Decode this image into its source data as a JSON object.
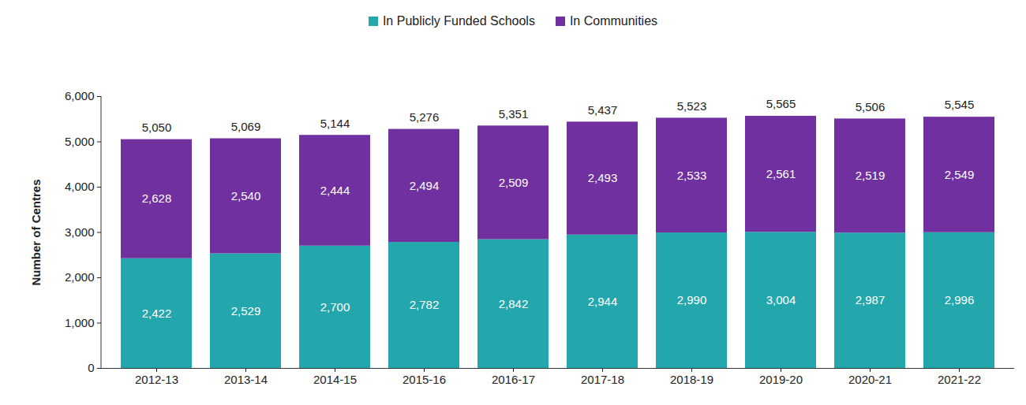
{
  "chart_data": {
    "type": "bar",
    "stacked": true,
    "data_labels": true,
    "legend": "top",
    "grid": false,
    "y_label": "Number of Centres",
    "categories": [
      "2012-13",
      "2013-14",
      "2014-15",
      "2015-16",
      "2016-17",
      "2017-18",
      "2018-19",
      "2019-20",
      "2020-21",
      "2021-22"
    ],
    "series": [
      {
        "name": "In Publicly Funded Schools",
        "color": "#23a7ad",
        "values": [
          2422,
          2529,
          2700,
          2782,
          2842,
          2944,
          2990,
          3004,
          2987,
          2996
        ],
        "value_labels": [
          "2,422",
          "2,529",
          "2,700",
          "2,782",
          "2,842",
          "2,944",
          "2,990",
          "3,004",
          "2,987",
          "2,996"
        ]
      },
      {
        "name": "In Communities",
        "color": "#7030a0",
        "values": [
          2628,
          2540,
          2444,
          2494,
          2509,
          2493,
          2533,
          2561,
          2519,
          2549
        ],
        "value_labels": [
          "2,628",
          "2,540",
          "2,444",
          "2,494",
          "2,509",
          "2,493",
          "2,533",
          "2,561",
          "2,519",
          "2,549"
        ]
      }
    ],
    "totals": [
      5050,
      5069,
      5144,
      5276,
      5351,
      5437,
      5523,
      5565,
      5506,
      5545
    ],
    "total_labels": [
      "5,050",
      "5,069",
      "5,144",
      "5,276",
      "5,351",
      "5,437",
      "5,523",
      "5,565",
      "5,506",
      "5,545"
    ],
    "ylim": [
      0,
      6000
    ],
    "yticks": [
      0,
      {
        "value": 1000,
        "label": "1,000"
      },
      {
        "value": 2000,
        "label": "2,000"
      },
      {
        "value": 3000,
        "label": "3,000"
      },
      {
        "value": 4000,
        "label": "4,000"
      },
      {
        "value": 5000,
        "label": "5,000"
      },
      {
        "value": 6000,
        "label": "6,000"
      }
    ]
  }
}
